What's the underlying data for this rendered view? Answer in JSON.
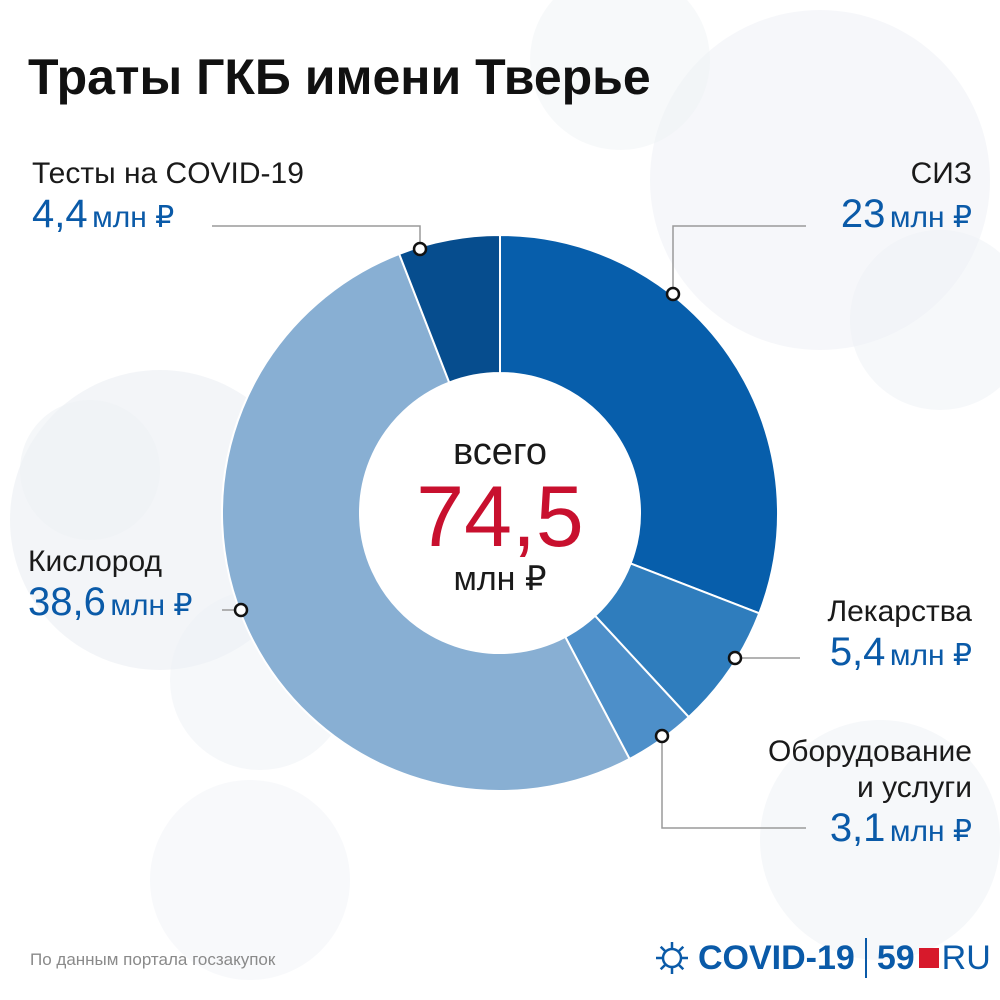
{
  "title": "Траты ГКБ имени Тверье",
  "center": {
    "top": "всего",
    "value": "74,5",
    "unit": "млн ₽"
  },
  "labels": {
    "tests": {
      "name": "Тесты на COVID-19",
      "num": "4,4",
      "unit": "млн ₽"
    },
    "siz": {
      "name": "СИЗ",
      "num": "23",
      "unit": "млн ₽"
    },
    "oxygen": {
      "name": "Кислород",
      "num": "38,6",
      "unit": "млн ₽"
    },
    "drugs": {
      "name": "Лекарства",
      "num": "5,4",
      "unit": "млн ₽"
    },
    "equip": {
      "name1": "Оборудование",
      "name2": "и услуги",
      "num": "3,1",
      "unit": "млн ₽"
    }
  },
  "chart_data": {
    "type": "pie",
    "variant": "donut",
    "title": "Траты ГКБ имени Тверье",
    "unit": "млн ₽",
    "total": 74.5,
    "categories": [
      "СИЗ",
      "Лекарства",
      "Оборудование и услуги",
      "Кислород",
      "Тесты на COVID-19"
    ],
    "values": [
      23,
      5.4,
      3.1,
      38.6,
      4.4
    ],
    "colors": [
      "#075eab",
      "#2f7dbd",
      "#4d8fc9",
      "#88afd3",
      "#064d8e"
    ]
  },
  "source": "По данным портала госзакупок",
  "brand": {
    "covid": "COVID-19",
    "n59": "59",
    "ru": "RU"
  }
}
